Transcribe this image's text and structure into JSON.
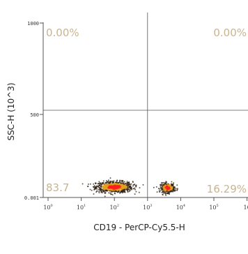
{
  "chart_data": {
    "type": "scatter",
    "xlabel": "CD19 - PerCP-Cy5.5-H",
    "ylabel": "SSC-H (10^3)",
    "x_scale": "log",
    "x_ticks": [
      {
        "base": "10",
        "exp": "0"
      },
      {
        "base": "10",
        "exp": "1"
      },
      {
        "base": "10",
        "exp": "2"
      },
      {
        "base": "10",
        "exp": "3"
      },
      {
        "base": "10",
        "exp": "4"
      },
      {
        "base": "10",
        "exp": "5"
      },
      {
        "base": "10",
        "exp": ""
      }
    ],
    "y_ticks": [
      "1000",
      "500",
      "0.001"
    ],
    "gate": {
      "x": 1000,
      "y": 500
    },
    "quadrants": [
      {
        "position": "top-left",
        "label": "0.00%"
      },
      {
        "position": "top-right",
        "label": "0.00%"
      },
      {
        "position": "bottom-left",
        "label": "83.7"
      },
      {
        "position": "bottom-right",
        "label": "16.29%"
      }
    ],
    "populations": [
      {
        "x_center": 100,
        "y_center": 60,
        "x_spread": 0.55,
        "y_spread": 35
      },
      {
        "x_center": 4000,
        "y_center": 55,
        "x_spread": 0.22,
        "y_spread": 30
      }
    ]
  },
  "colors": {
    "quadrant_text": "#c9b48e",
    "gate_line": "#555555",
    "density_low": "#2a1a0a",
    "density_mid": "#e0a020",
    "density_high": "#ff2020"
  }
}
